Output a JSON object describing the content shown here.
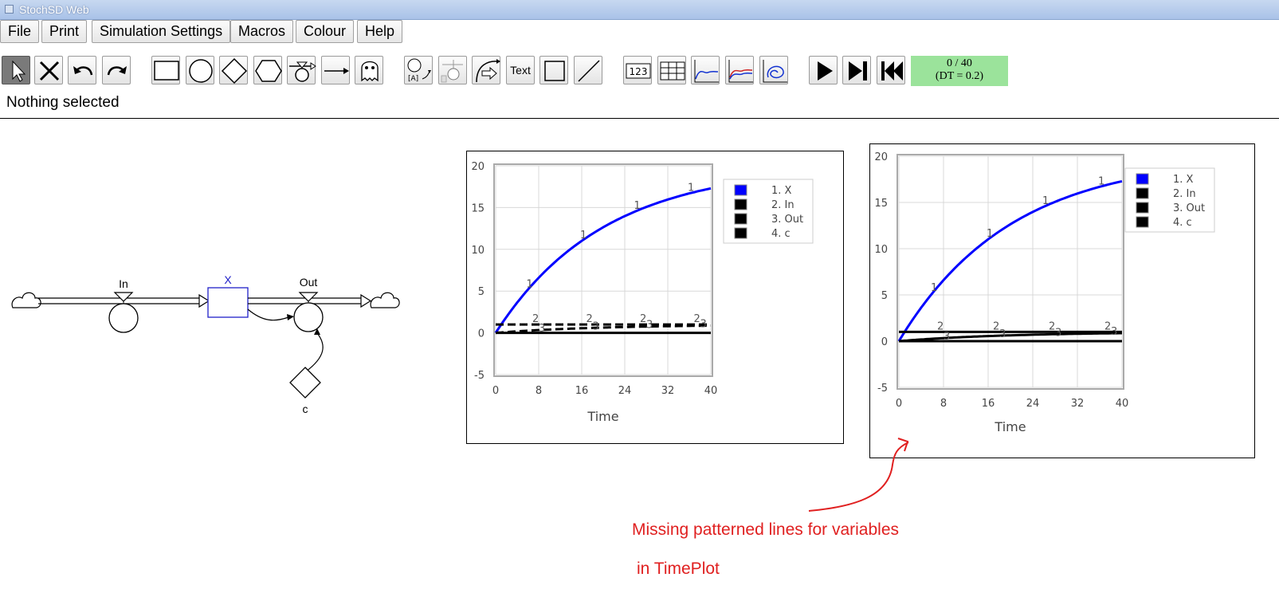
{
  "window": {
    "title": "StochSD Web"
  },
  "menu": [
    "File",
    "Print",
    "Simulation Settings",
    "Macros",
    "Colour",
    "Help"
  ],
  "toolbar": {
    "text_tool_label": "Text",
    "numberbox_label": "123",
    "time_display": {
      "progress": "0 / 40",
      "dt": "(DT = 0.2)"
    },
    "tools": [
      "pointer-tool",
      "delete-tool",
      "undo-tool",
      "redo-tool",
      "stock-tool",
      "auxiliary-tool",
      "constant-tool",
      "converter-tool",
      "flow-tool",
      "link-tool",
      "ghost-tool",
      "rotate-name-tool",
      "flow-direction-tool",
      "curve-link-tool",
      "text-tool",
      "rectangle-tool",
      "line-tool",
      "numberbox-tool",
      "table-tool",
      "timeplot-tool",
      "compareplot-tool",
      "xyplot-tool",
      "run-button",
      "step-button",
      "reset-button"
    ]
  },
  "status": "Nothing selected",
  "model": {
    "stock": "X",
    "inflow": "In",
    "outflow": "Out",
    "constant": "c"
  },
  "plots": [
    {
      "legend": [
        "1. X",
        "2. In",
        "3. Out",
        "4. c"
      ],
      "xlabel": "Time",
      "yticks": [
        "20",
        "15",
        "10",
        "5",
        "0",
        "-5"
      ],
      "xticks": [
        "0",
        "8",
        "16",
        "24",
        "32",
        "40"
      ]
    },
    {
      "legend": [
        "1. X",
        "2. In",
        "3. Out",
        "4. c"
      ],
      "xlabel": "Time",
      "yticks": [
        "20",
        "15",
        "10",
        "5",
        "0",
        "-5"
      ],
      "xticks": [
        "0",
        "8",
        "16",
        "24",
        "32",
        "40"
      ]
    }
  ],
  "chart_data": [
    {
      "type": "line",
      "x": [
        0,
        8,
        16,
        24,
        32,
        40
      ],
      "xlim": [
        0,
        40
      ],
      "ylim": [
        -5,
        20
      ],
      "xlabel": "Time",
      "series": [
        {
          "name": "1. X",
          "color": "#0000ff",
          "style": "solid",
          "values": [
            0,
            6.6,
            11.0,
            14.0,
            16.0,
            17.3
          ]
        },
        {
          "name": "2. In",
          "color": "#000000",
          "style": "dashed",
          "values": [
            1,
            1,
            1,
            1,
            1,
            1
          ]
        },
        {
          "name": "3. Out",
          "color": "#000000",
          "style": "dashed",
          "values": [
            0,
            0.33,
            0.55,
            0.7,
            0.8,
            0.87
          ]
        },
        {
          "name": "4. c",
          "color": "#000000",
          "style": "solid",
          "values": [
            0,
            0,
            0,
            0,
            0,
            0
          ]
        }
      ]
    },
    {
      "type": "line",
      "x": [
        0,
        8,
        16,
        24,
        32,
        40
      ],
      "xlim": [
        0,
        40
      ],
      "ylim": [
        -5,
        20
      ],
      "xlabel": "Time",
      "series": [
        {
          "name": "1. X",
          "color": "#0000ff",
          "style": "solid",
          "values": [
            0,
            6.6,
            11.0,
            14.0,
            16.0,
            17.3
          ]
        },
        {
          "name": "2. In",
          "color": "#000000",
          "style": "solid",
          "values": [
            1,
            1,
            1,
            1,
            1,
            1
          ]
        },
        {
          "name": "3. Out",
          "color": "#000000",
          "style": "solid",
          "values": [
            0,
            0.33,
            0.55,
            0.7,
            0.8,
            0.87
          ]
        },
        {
          "name": "4. c",
          "color": "#000000",
          "style": "solid",
          "values": [
            0,
            0,
            0,
            0,
            0,
            0
          ]
        }
      ]
    }
  ],
  "annotation": {
    "line1": "Missing patterned lines for variables",
    "line2": "in TimePlot",
    "color": "#e02020"
  }
}
